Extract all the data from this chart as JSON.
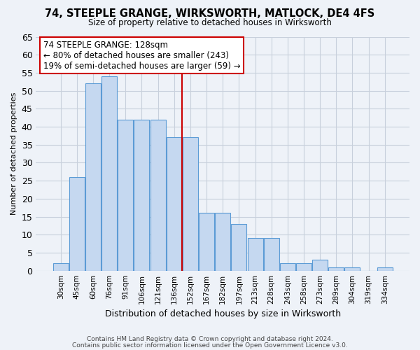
{
  "title": "74, STEEPLE GRANGE, WIRKSWORTH, MATLOCK, DE4 4FS",
  "subtitle": "Size of property relative to detached houses in Wirksworth",
  "xlabel": "Distribution of detached houses by size in Wirksworth",
  "ylabel": "Number of detached properties",
  "categories": [
    "30sqm",
    "45sqm",
    "60sqm",
    "76sqm",
    "91sqm",
    "106sqm",
    "121sqm",
    "136sqm",
    "152sqm",
    "167sqm",
    "182sqm",
    "197sqm",
    "213sqm",
    "228sqm",
    "243sqm",
    "258sqm",
    "273sqm",
    "289sqm",
    "304sqm",
    "319sqm",
    "334sqm"
  ],
  "values": [
    2,
    26,
    52,
    54,
    42,
    42,
    42,
    37,
    37,
    16,
    16,
    13,
    9,
    9,
    2,
    2,
    3,
    1,
    1,
    0,
    1
  ],
  "bar_color": "#c5d8f0",
  "bar_edge_color": "#5b9bd5",
  "grid_color": "#c8d0dc",
  "redline_x": 7.5,
  "annotation_text": "74 STEEPLE GRANGE: 128sqm\n← 80% of detached houses are smaller (243)\n19% of semi-detached houses are larger (59) →",
  "annotation_box_color": "#ffffff",
  "annotation_border_color": "#cc0000",
  "ylim": [
    0,
    65
  ],
  "yticks": [
    0,
    5,
    10,
    15,
    20,
    25,
    30,
    35,
    40,
    45,
    50,
    55,
    60,
    65
  ],
  "footer1": "Contains HM Land Registry data © Crown copyright and database right 2024.",
  "footer2": "Contains public sector information licensed under the Open Government Licence v3.0.",
  "bg_color": "#eef2f8"
}
